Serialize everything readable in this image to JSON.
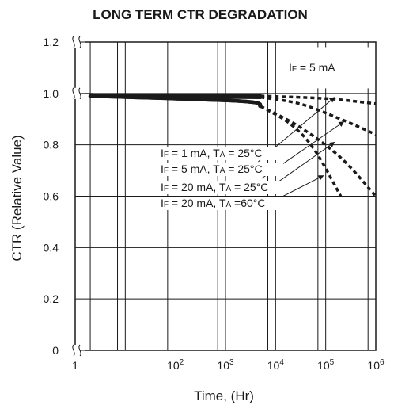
{
  "chart_data": {
    "type": "line",
    "title": "LONG TERM CTR DEGRADATION",
    "xlabel": "Time, (Hr)",
    "ylabel": "CTR (Relative Value)",
    "x_scale": "log",
    "xlim": [
      1,
      1000000
    ],
    "ylim": [
      0,
      1.2
    ],
    "x_ticks": [
      {
        "base": "1",
        "exp": ""
      },
      {
        "base": "10",
        "exp": "2"
      },
      {
        "base": "10",
        "exp": "3"
      },
      {
        "base": "10",
        "exp": "4"
      },
      {
        "base": "10",
        "exp": "5"
      },
      {
        "base": "10",
        "exp": "6"
      }
    ],
    "y_ticks": [
      "0",
      "0.2",
      "0.4",
      "0.6",
      "0.8",
      "1.0",
      "1.2"
    ],
    "grid": true,
    "box_label": "IF = 5 mA",
    "box_label_parts": {
      "p1": "I",
      "s1": "F",
      "p2": " = 5 mA"
    },
    "series": [
      {
        "label": "IF = 1 mA, TA = 25°C",
        "parts": {
          "p1": "I",
          "s1": "F",
          "p2": " = 1 mA, T",
          "s2": "A",
          "p3": " = 25°C"
        },
        "solid": [
          [
            2,
            0.99
          ],
          [
            5000,
            0.99
          ]
        ],
        "dashed": [
          [
            5000,
            0.99
          ],
          [
            100000,
            0.98
          ],
          [
            1000000,
            0.96
          ]
        ]
      },
      {
        "label": "IF = 5 mA, TA = 25°C",
        "parts": {
          "p1": "I",
          "s1": "F",
          "p2": " = 5 mA, T",
          "s2": "A",
          "p3": " = 25°C"
        },
        "solid": [
          [
            2,
            0.99
          ],
          [
            5000,
            0.985
          ]
        ],
        "dashed": [
          [
            5000,
            0.985
          ],
          [
            30000,
            0.96
          ],
          [
            200000,
            0.9
          ],
          [
            1000000,
            0.84
          ]
        ]
      },
      {
        "label": "IF = 20 mA, TA = 25°C",
        "parts": {
          "p1": "I",
          "s1": "F",
          "p2": " = 20 mA, T",
          "s2": "A",
          "p3": " = 25°C"
        },
        "solid": [
          [
            2,
            0.99
          ],
          [
            2000,
            0.97
          ],
          [
            5000,
            0.95
          ]
        ],
        "dashed": [
          [
            5000,
            0.95
          ],
          [
            30000,
            0.87
          ],
          [
            200000,
            0.75
          ],
          [
            1000000,
            0.6
          ]
        ]
      },
      {
        "label": "IF = 20 mA, TA =60°C",
        "parts": {
          "p1": "I",
          "s1": "F",
          "p2": " = 20 mA, T",
          "s2": "A",
          "p3": " =60°C"
        },
        "solid": [
          [
            2,
            0.99
          ],
          [
            2000,
            0.97
          ],
          [
            5000,
            0.95
          ]
        ],
        "dashed": [
          [
            5000,
            0.95
          ],
          [
            20000,
            0.88
          ],
          [
            60000,
            0.78
          ],
          [
            200000,
            0.6
          ]
        ]
      }
    ]
  }
}
